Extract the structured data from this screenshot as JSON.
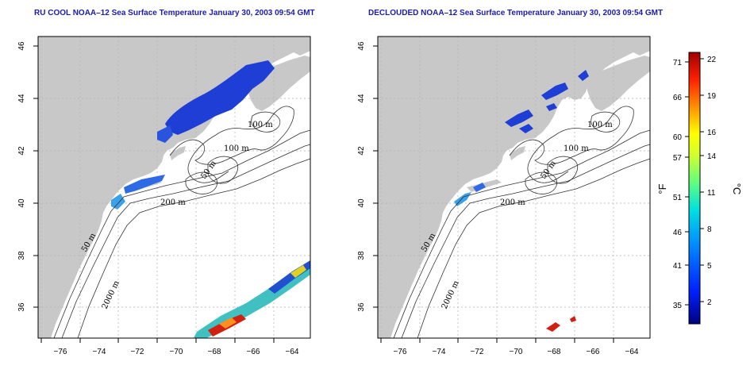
{
  "panels": [
    {
      "title": "RU COOL NOAA–12 Sea Surface Temperature January 30, 2003 09:54 GMT",
      "contour_labels": [
        "100 m",
        "100 m",
        "50 m",
        "200 m",
        "50 m",
        "2000 m"
      ]
    },
    {
      "title": "DECLOUDED NOAA–12 Sea Surface Temperature January 30, 2003 09:54 GMT",
      "contour_labels": [
        "100 m",
        "100 m",
        "50 m",
        "200 m",
        "50 m",
        "2000 m"
      ]
    }
  ],
  "axes": {
    "x_ticks": [
      "−76",
      "−74",
      "−72",
      "−70",
      "−68",
      "−66",
      "−64"
    ],
    "y_ticks": [
      "36",
      "38",
      "40",
      "42",
      "44",
      "46"
    ]
  },
  "colorbar": {
    "fahrenheit_ticks": [
      "71",
      "66",
      "60",
      "57",
      "51",
      "46",
      "41",
      "35"
    ],
    "celsius_ticks": [
      "22",
      "19",
      "16",
      "14",
      "11",
      "8",
      "5",
      "2"
    ],
    "f_label": "°F",
    "c_label": "°C",
    "colors": [
      "#000080",
      "#0000ff",
      "#0080ff",
      "#00e0ff",
      "#40ffb0",
      "#c0ff40",
      "#ffff00",
      "#ffa000",
      "#ff2000",
      "#a00000"
    ]
  },
  "colors": {
    "land": "#c8c8c8",
    "title": "#1a1ab4",
    "cold_sst": "#1f3ed6",
    "warm_sst": "#d02010"
  }
}
